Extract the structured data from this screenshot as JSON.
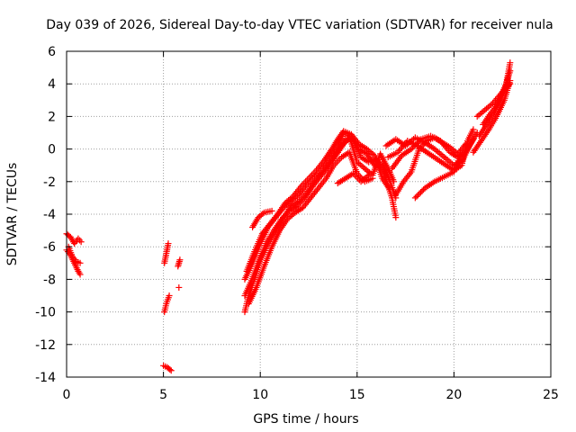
{
  "chart_data": {
    "type": "scatter",
    "title": "Day 039 of 2026, Sidereal Day-to-day VTEC variation (SDTVAR) for receiver nula",
    "xlabel": "GPS time / hours",
    "ylabel": "SDTVAR / TECUs",
    "xlim": [
      0,
      25
    ],
    "ylim": [
      -14,
      6
    ],
    "x_ticks": [
      0,
      5,
      10,
      15,
      20,
      25
    ],
    "y_ticks": [
      -14,
      -12,
      -10,
      -8,
      -6,
      -4,
      -2,
      0,
      2,
      4,
      6
    ],
    "grid": true,
    "marker": "+",
    "series": [
      {
        "name": "SDTVAR",
        "color": "#ff0000",
        "tracks": [
          [
            [
              0.0,
              -5.2
            ],
            [
              0.2,
              -5.4
            ],
            [
              0.4,
              -5.8
            ],
            [
              0.6,
              -5.5
            ],
            [
              0.75,
              -5.7
            ]
          ],
          [
            [
              0.0,
              -6.2
            ],
            [
              0.2,
              -6.5
            ],
            [
              0.4,
              -7.0
            ],
            [
              0.6,
              -7.5
            ],
            [
              0.7,
              -7.7
            ]
          ],
          [
            [
              0.1,
              -6.0
            ],
            [
              0.3,
              -6.6
            ],
            [
              0.5,
              -6.9
            ],
            [
              0.7,
              -7.0
            ]
          ],
          [
            [
              5.05,
              -7.0
            ],
            [
              5.15,
              -6.4
            ],
            [
              5.25,
              -5.8
            ]
          ],
          [
            [
              5.05,
              -10.0
            ],
            [
              5.15,
              -9.5
            ],
            [
              5.3,
              -9.0
            ]
          ],
          [
            [
              5.0,
              -13.3
            ],
            [
              5.2,
              -13.4
            ],
            [
              5.4,
              -13.6
            ]
          ],
          [
            [
              5.75,
              -7.2
            ],
            [
              5.85,
              -6.8
            ]
          ],
          [
            [
              5.8,
              -8.5
            ]
          ],
          [
            [
              9.2,
              -10.0
            ],
            [
              9.4,
              -9.0
            ],
            [
              9.7,
              -8.0
            ],
            [
              10.0,
              -6.8
            ],
            [
              10.4,
              -5.8
            ],
            [
              10.8,
              -5.0
            ],
            [
              11.2,
              -4.2
            ],
            [
              11.6,
              -3.5
            ],
            [
              12.0,
              -3.2
            ],
            [
              12.4,
              -2.7
            ],
            [
              12.8,
              -2.0
            ],
            [
              13.2,
              -1.4
            ],
            [
              13.6,
              -0.8
            ],
            [
              14.0,
              -0.2
            ],
            [
              14.4,
              0.6
            ],
            [
              14.8,
              0.6
            ],
            [
              15.2,
              -0.5
            ],
            [
              15.6,
              -0.8
            ],
            [
              16.0,
              -0.6
            ],
            [
              16.4,
              -1.5
            ],
            [
              16.8,
              -3.0
            ],
            [
              17.0,
              -4.2
            ]
          ],
          [
            [
              9.2,
              -9.0
            ],
            [
              9.5,
              -8.2
            ],
            [
              9.9,
              -7.0
            ],
            [
              10.3,
              -5.8
            ],
            [
              10.7,
              -5.0
            ],
            [
              11.1,
              -4.3
            ],
            [
              11.5,
              -3.8
            ],
            [
              11.9,
              -3.5
            ],
            [
              12.3,
              -3.0
            ],
            [
              12.7,
              -2.3
            ],
            [
              13.1,
              -1.7
            ],
            [
              13.5,
              -1.1
            ],
            [
              13.9,
              -0.4
            ],
            [
              14.3,
              0.3
            ],
            [
              14.7,
              0.8
            ],
            [
              15.1,
              0.0
            ],
            [
              15.5,
              -0.3
            ],
            [
              15.9,
              -1.0
            ],
            [
              16.3,
              -0.9
            ],
            [
              16.7,
              -2.0
            ],
            [
              17.0,
              -3.0
            ]
          ],
          [
            [
              9.2,
              -8.0
            ],
            [
              9.6,
              -7.0
            ],
            [
              10.0,
              -5.8
            ],
            [
              10.4,
              -4.8
            ],
            [
              10.8,
              -4.2
            ],
            [
              11.2,
              -3.6
            ],
            [
              11.6,
              -3.2
            ],
            [
              12.0,
              -2.8
            ],
            [
              12.4,
              -2.2
            ],
            [
              12.8,
              -1.7
            ],
            [
              13.2,
              -1.2
            ],
            [
              13.6,
              -0.6
            ],
            [
              14.0,
              0.2
            ],
            [
              14.3,
              1.0
            ],
            [
              14.6,
              0.8
            ],
            [
              15.0,
              -0.8
            ],
            [
              15.4,
              -1.2
            ],
            [
              15.8,
              -1.6
            ],
            [
              16.2,
              -0.3
            ],
            [
              16.6,
              -1.2
            ],
            [
              16.9,
              -2.0
            ]
          ],
          [
            [
              9.3,
              -7.5
            ],
            [
              9.7,
              -6.3
            ],
            [
              10.1,
              -5.2
            ],
            [
              10.5,
              -4.6
            ],
            [
              10.9,
              -4.0
            ],
            [
              11.3,
              -3.3
            ],
            [
              11.7,
              -2.9
            ],
            [
              12.1,
              -2.3
            ],
            [
              12.5,
              -1.8
            ],
            [
              12.9,
              -1.3
            ],
            [
              13.3,
              -0.7
            ],
            [
              13.7,
              0.0
            ],
            [
              14.0,
              0.6
            ],
            [
              14.3,
              1.1
            ],
            [
              14.7,
              0.9
            ],
            [
              15.1,
              0.3
            ],
            [
              15.5,
              0.0
            ],
            [
              15.9,
              -0.4
            ],
            [
              16.3,
              -1.8
            ],
            [
              16.7,
              -2.5
            ]
          ],
          [
            [
              9.4,
              -9.5
            ],
            [
              9.8,
              -8.5
            ],
            [
              10.2,
              -7.2
            ],
            [
              10.6,
              -6.0
            ],
            [
              11.0,
              -5.0
            ],
            [
              11.4,
              -4.3
            ],
            [
              11.8,
              -3.9
            ],
            [
              12.2,
              -3.6
            ],
            [
              12.6,
              -3.0
            ],
            [
              13.0,
              -2.4
            ],
            [
              13.4,
              -1.8
            ],
            [
              13.8,
              -1.0
            ],
            [
              14.2,
              -0.5
            ],
            [
              14.6,
              -0.2
            ],
            [
              15.0,
              -1.5
            ],
            [
              15.4,
              -2.0
            ],
            [
              15.8,
              -1.8
            ]
          ],
          [
            [
              9.6,
              -4.8
            ],
            [
              9.9,
              -4.2
            ],
            [
              10.2,
              -3.9
            ],
            [
              10.6,
              -3.8
            ]
          ],
          [
            [
              14.0,
              -2.1
            ],
            [
              14.4,
              -1.8
            ],
            [
              14.8,
              -1.5
            ],
            [
              15.2,
              -2.0
            ],
            [
              15.6,
              -1.6
            ]
          ],
          [
            [
              16.5,
              0.2
            ],
            [
              17.0,
              0.6
            ],
            [
              17.5,
              0.2
            ],
            [
              18.0,
              0.7
            ],
            [
              18.5,
              0.4
            ],
            [
              19.0,
              0.0
            ],
            [
              19.5,
              -0.5
            ],
            [
              20.0,
              -1.0
            ],
            [
              20.4,
              -0.8
            ],
            [
              20.8,
              0.2
            ],
            [
              21.2,
              1.0
            ]
          ],
          [
            [
              16.6,
              -0.5
            ],
            [
              17.1,
              -0.2
            ],
            [
              17.6,
              0.5
            ],
            [
              18.1,
              0.2
            ],
            [
              18.6,
              -0.2
            ],
            [
              19.1,
              -0.6
            ],
            [
              19.6,
              -1.0
            ],
            [
              20.0,
              -1.3
            ],
            [
              20.4,
              -1.0
            ],
            [
              20.7,
              0.5
            ],
            [
              21.0,
              1.2
            ]
          ],
          [
            [
              16.8,
              -1.2
            ],
            [
              17.3,
              -0.4
            ],
            [
              17.8,
              0.0
            ],
            [
              18.3,
              0.6
            ],
            [
              18.8,
              0.8
            ],
            [
              19.3,
              0.5
            ],
            [
              19.8,
              -0.2
            ],
            [
              20.2,
              -0.5
            ],
            [
              20.6,
              -0.2
            ],
            [
              21.0,
              0.6
            ]
          ],
          [
            [
              17.0,
              -2.8
            ],
            [
              17.4,
              -2.0
            ],
            [
              17.8,
              -1.4
            ],
            [
              18.2,
              0.0
            ],
            [
              18.6,
              0.5
            ],
            [
              19.0,
              0.7
            ],
            [
              19.4,
              0.4
            ],
            [
              19.8,
              0.1
            ],
            [
              20.2,
              -0.3
            ],
            [
              20.6,
              0.3
            ]
          ],
          [
            [
              18.0,
              -3.0
            ],
            [
              18.5,
              -2.4
            ],
            [
              19.0,
              -2.0
            ],
            [
              19.5,
              -1.7
            ],
            [
              20.0,
              -1.4
            ],
            [
              20.3,
              -0.5
            ]
          ],
          [
            [
              21.0,
              -0.2
            ],
            [
              21.4,
              0.5
            ],
            [
              21.8,
              1.2
            ],
            [
              22.2,
              2.0
            ],
            [
              22.6,
              3.0
            ],
            [
              22.9,
              4.2
            ]
          ],
          [
            [
              21.3,
              0.8
            ],
            [
              21.7,
              1.5
            ],
            [
              22.1,
              2.3
            ],
            [
              22.4,
              3.2
            ],
            [
              22.7,
              4.0
            ],
            [
              22.9,
              5.3
            ]
          ],
          [
            [
              21.5,
              1.5
            ],
            [
              21.9,
              2.2
            ],
            [
              22.3,
              2.8
            ],
            [
              22.6,
              3.6
            ],
            [
              22.9,
              4.8
            ]
          ],
          [
            [
              21.2,
              2.0
            ],
            [
              21.6,
              2.4
            ],
            [
              22.0,
              2.8
            ],
            [
              22.5,
              3.5
            ],
            [
              22.9,
              4.0
            ]
          ]
        ]
      }
    ]
  }
}
